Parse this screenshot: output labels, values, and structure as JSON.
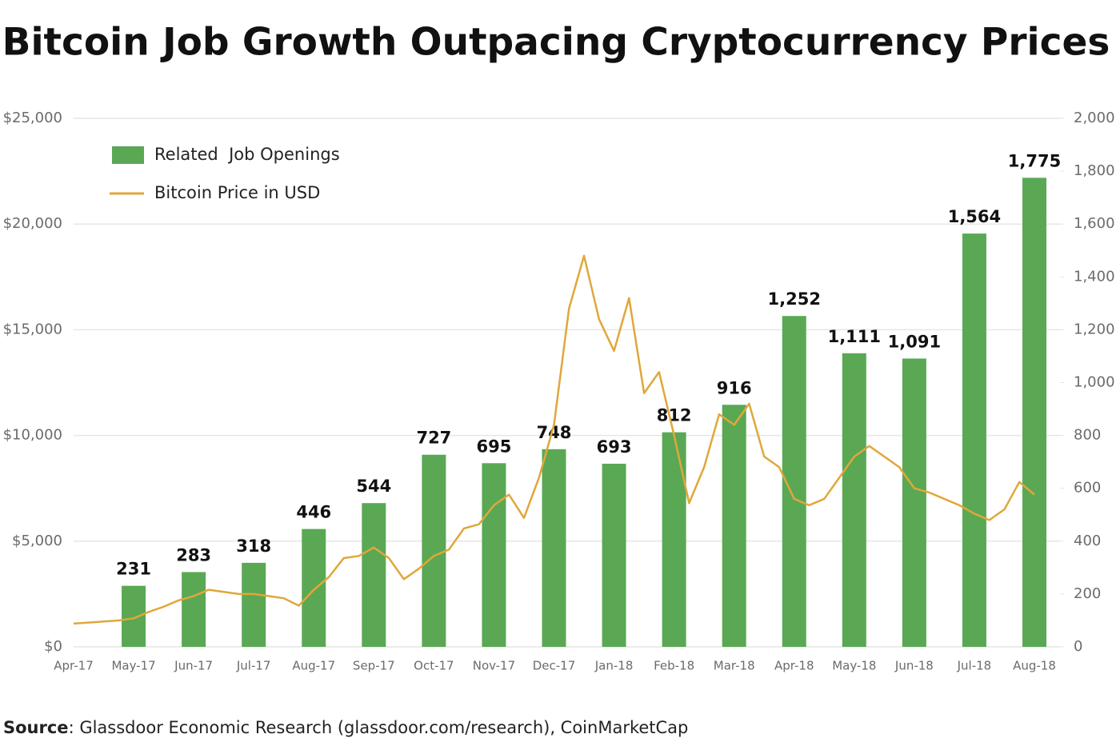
{
  "chart_data": {
    "type": "bar-line",
    "title": "Bitcoin Job Growth Outpacing Cryptocurrency Prices",
    "source": {
      "label": "Source",
      "text": ": Glassdoor Economic Research (glassdoor.com/research), CoinMarketCap"
    },
    "categories": [
      "Apr-17",
      null,
      null,
      null,
      "May-17",
      null,
      null,
      null,
      "Jun-17",
      null,
      null,
      null,
      "Jul-17",
      null,
      null,
      null,
      "Aug-17",
      null,
      null,
      null,
      "Sep-17",
      null,
      null,
      null,
      "Oct-17",
      null,
      null,
      null,
      "Nov-17",
      null,
      null,
      null,
      "Dec-17",
      null,
      null,
      null,
      "Jan-18",
      null,
      null,
      null,
      "Feb-18",
      null,
      null,
      null,
      "Mar-18",
      null,
      null,
      null,
      "Apr-18",
      null,
      null,
      null,
      "May-18",
      null,
      null,
      null,
      "Jun-18",
      null,
      null,
      null,
      "Jul-18",
      null,
      null,
      null,
      "Aug-18"
    ],
    "series": [
      {
        "name": "Related  Job Openings",
        "color": "#5aa854",
        "axis": "y2",
        "values": [
          null,
          null,
          null,
          null,
          231,
          null,
          null,
          null,
          283,
          null,
          null,
          null,
          318,
          null,
          null,
          null,
          446,
          null,
          null,
          null,
          544,
          null,
          null,
          null,
          727,
          null,
          null,
          null,
          695,
          null,
          null,
          null,
          748,
          null,
          null,
          null,
          693,
          null,
          null,
          null,
          812,
          null,
          null,
          null,
          916,
          null,
          null,
          null,
          1252,
          null,
          null,
          null,
          1111,
          null,
          null,
          null,
          1091,
          null,
          null,
          null,
          1564,
          null,
          null,
          null,
          1775
        ],
        "value_labels": [
          null,
          null,
          null,
          null,
          "231",
          null,
          null,
          null,
          "283",
          null,
          null,
          null,
          "318",
          null,
          null,
          null,
          "446",
          null,
          null,
          null,
          "544",
          null,
          null,
          null,
          "727",
          null,
          null,
          null,
          "695",
          null,
          null,
          null,
          "748",
          null,
          null,
          null,
          "693",
          null,
          null,
          null,
          "812",
          null,
          null,
          null,
          "916",
          null,
          null,
          null,
          "1,252",
          null,
          null,
          null,
          "1,111",
          null,
          null,
          null,
          "1,091",
          null,
          null,
          null,
          "1,564",
          null,
          null,
          null,
          "1,775"
        ]
      },
      {
        "name": "Bitcoin Price in USD",
        "color": "#e0a73a",
        "values": [
          1100,
          1150,
          1200,
          1250,
          1350,
          1650,
          1900,
          2200,
          2400,
          2700,
          2600,
          2500,
          2500,
          2400,
          2300,
          1950,
          2700,
          3300,
          4200,
          4300,
          4700,
          4200,
          3200,
          3700,
          4300,
          4600,
          5600,
          5800,
          6700,
          7200,
          6100,
          8000,
          10500,
          16000,
          18500,
          15500,
          14000,
          16500,
          12000,
          13000,
          10000,
          6800,
          8500,
          11000,
          10500,
          11500,
          9000,
          8500,
          7000,
          6700,
          7000,
          8000,
          9000,
          9500,
          9000,
          8500,
          7500,
          7300,
          7000,
          6700,
          6300,
          6000,
          6500,
          7800,
          7200
        ]
      }
    ],
    "ylim": [
      0,
      25000
    ],
    "yticks": [
      {
        "value": 0,
        "label": "$0"
      },
      {
        "value": 5000,
        "label": "$5,000"
      },
      {
        "value": 10000,
        "label": "$10,000"
      },
      {
        "value": 15000,
        "label": "$15,000"
      },
      {
        "value": 20000,
        "label": "$20,000"
      },
      {
        "value": 25000,
        "label": "$25,000"
      }
    ],
    "y2lim": [
      0,
      2000
    ],
    "y2ticks": [
      0,
      200,
      400,
      600,
      800,
      {
        "value": 1000,
        "label": "1,000"
      },
      {
        "value": 1200,
        "label": "1,200"
      },
      {
        "value": 1400,
        "label": "1,400"
      },
      {
        "value": 1600,
        "label": "1,600"
      },
      {
        "value": 1800,
        "label": "1,800"
      },
      {
        "value": 2000,
        "label": "2,000"
      }
    ],
    "grid": true,
    "legend": "upper left"
  }
}
